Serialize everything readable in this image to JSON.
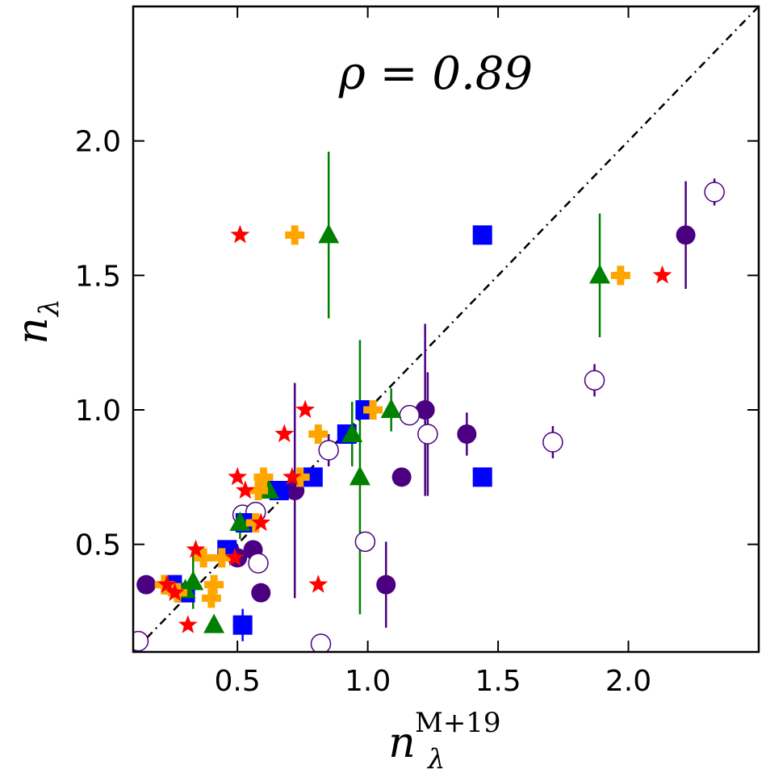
{
  "chart_data": {
    "type": "scatter",
    "xlabel": {
      "base": "n",
      "sub": "λ",
      "sup": "M+19"
    },
    "ylabel": {
      "base": "n",
      "sub": "λ"
    },
    "annotation": "ρ = 0.89",
    "xlim": [
      0.1,
      2.5
    ],
    "ylim": [
      0.1,
      2.5
    ],
    "xticks": [
      0.5,
      1.0,
      1.5,
      2.0
    ],
    "yticks": [
      0.5,
      1.0,
      1.5,
      2.0
    ],
    "xtick_labels": [
      "0.5",
      "1.0",
      "1.5",
      "2.0"
    ],
    "ytick_labels": [
      "0.5",
      "1.0",
      "1.5",
      "2.0"
    ],
    "reference_line": {
      "style": "dash-dot",
      "from": [
        0.1,
        0.1
      ],
      "to": [
        2.5,
        2.5
      ]
    },
    "colors": {
      "indigo": "#4b0082",
      "blue": "#0000ff",
      "green": "#008000",
      "orange": "#ffa500",
      "red": "#ff0000"
    },
    "series": [
      {
        "name": "filled-circle",
        "marker": "circle",
        "color": "#4b0082",
        "points": [
          {
            "x": 0.15,
            "y": 0.35
          },
          {
            "x": 0.47,
            "y": 0.48
          },
          {
            "x": 0.5,
            "y": 0.45
          },
          {
            "x": 0.56,
            "y": 0.48
          },
          {
            "x": 0.59,
            "y": 0.32
          },
          {
            "x": 0.72,
            "y": 0.7,
            "yerr": 0.4
          },
          {
            "x": 1.07,
            "y": 0.35,
            "yerr": 0.16
          },
          {
            "x": 1.13,
            "y": 0.75
          },
          {
            "x": 1.22,
            "y": 1.0,
            "yerr": 0.32
          },
          {
            "x": 1.38,
            "y": 0.91,
            "yerr": 0.08
          },
          {
            "x": 2.22,
            "y": 1.65,
            "yerr": 0.2
          },
          {
            "x": 0.52,
            "y": 0.2
          }
        ]
      },
      {
        "name": "open-circle",
        "marker": "circle-open",
        "color": "#4b0082",
        "points": [
          {
            "x": 0.12,
            "y": 0.14
          },
          {
            "x": 0.52,
            "y": 0.61
          },
          {
            "x": 0.57,
            "y": 0.62
          },
          {
            "x": 0.58,
            "y": 0.43
          },
          {
            "x": 0.82,
            "y": 0.13
          },
          {
            "x": 0.85,
            "y": 0.85,
            "yerr": 0.06
          },
          {
            "x": 0.99,
            "y": 0.51
          },
          {
            "x": 1.16,
            "y": 0.98
          },
          {
            "x": 1.23,
            "y": 0.91,
            "yerr": 0.23
          },
          {
            "x": 1.71,
            "y": 0.88,
            "yerr": 0.06
          },
          {
            "x": 1.87,
            "y": 1.11,
            "yerr": 0.06
          },
          {
            "x": 2.33,
            "y": 1.81,
            "yerr": 0.05
          }
        ]
      },
      {
        "name": "square",
        "marker": "square",
        "color": "#0000ff",
        "points": [
          {
            "x": 0.25,
            "y": 0.35
          },
          {
            "x": 0.3,
            "y": 0.32
          },
          {
            "x": 0.46,
            "y": 0.48
          },
          {
            "x": 0.52,
            "y": 0.2,
            "yerr": 0.06
          },
          {
            "x": 0.53,
            "y": 0.58
          },
          {
            "x": 0.66,
            "y": 0.7
          },
          {
            "x": 0.79,
            "y": 0.75
          },
          {
            "x": 0.92,
            "y": 0.91
          },
          {
            "x": 0.99,
            "y": 1.0
          },
          {
            "x": 1.44,
            "y": 1.65
          },
          {
            "x": 1.44,
            "y": 0.75
          }
        ]
      },
      {
        "name": "triangle",
        "marker": "triangle",
        "color": "#008000",
        "points": [
          {
            "x": 0.3,
            "y": 0.33
          },
          {
            "x": 0.33,
            "y": 0.36,
            "yerr": 0.1
          },
          {
            "x": 0.41,
            "y": 0.2
          },
          {
            "x": 0.51,
            "y": 0.58,
            "yerr": 0.06
          },
          {
            "x": 0.62,
            "y": 0.7
          },
          {
            "x": 0.85,
            "y": 1.65,
            "yerr": 0.31
          },
          {
            "x": 0.94,
            "y": 0.91,
            "yerr": 0.12
          },
          {
            "x": 0.97,
            "y": 0.75,
            "yerr": 0.51
          },
          {
            "x": 1.09,
            "y": 1.0,
            "yerr": 0.08
          },
          {
            "x": 1.89,
            "y": 1.5,
            "yerr": 0.23
          }
        ]
      },
      {
        "name": "plus",
        "marker": "plus",
        "color": "#ffa500",
        "points": [
          {
            "x": 0.22,
            "y": 0.35
          },
          {
            "x": 0.27,
            "y": 0.32
          },
          {
            "x": 0.37,
            "y": 0.45
          },
          {
            "x": 0.4,
            "y": 0.3
          },
          {
            "x": 0.41,
            "y": 0.35
          },
          {
            "x": 0.44,
            "y": 0.45
          },
          {
            "x": 0.58,
            "y": 0.7
          },
          {
            "x": 0.6,
            "y": 0.75
          },
          {
            "x": 0.57,
            "y": 0.58
          },
          {
            "x": 0.74,
            "y": 0.75
          },
          {
            "x": 0.72,
            "y": 1.65
          },
          {
            "x": 0.81,
            "y": 0.91
          },
          {
            "x": 1.02,
            "y": 1.0
          },
          {
            "x": 1.97,
            "y": 1.5
          }
        ]
      },
      {
        "name": "star",
        "marker": "star",
        "color": "#ff0000",
        "points": [
          {
            "x": 0.23,
            "y": 0.35
          },
          {
            "x": 0.26,
            "y": 0.32
          },
          {
            "x": 0.31,
            "y": 0.2
          },
          {
            "x": 0.34,
            "y": 0.48
          },
          {
            "x": 0.49,
            "y": 0.45
          },
          {
            "x": 0.5,
            "y": 0.75
          },
          {
            "x": 0.53,
            "y": 0.7
          },
          {
            "x": 0.59,
            "y": 0.58
          },
          {
            "x": 0.68,
            "y": 0.91
          },
          {
            "x": 0.71,
            "y": 0.75
          },
          {
            "x": 0.76,
            "y": 1.0
          },
          {
            "x": 0.81,
            "y": 0.35
          },
          {
            "x": 0.51,
            "y": 1.65
          },
          {
            "x": 2.13,
            "y": 1.5
          }
        ]
      }
    ]
  }
}
